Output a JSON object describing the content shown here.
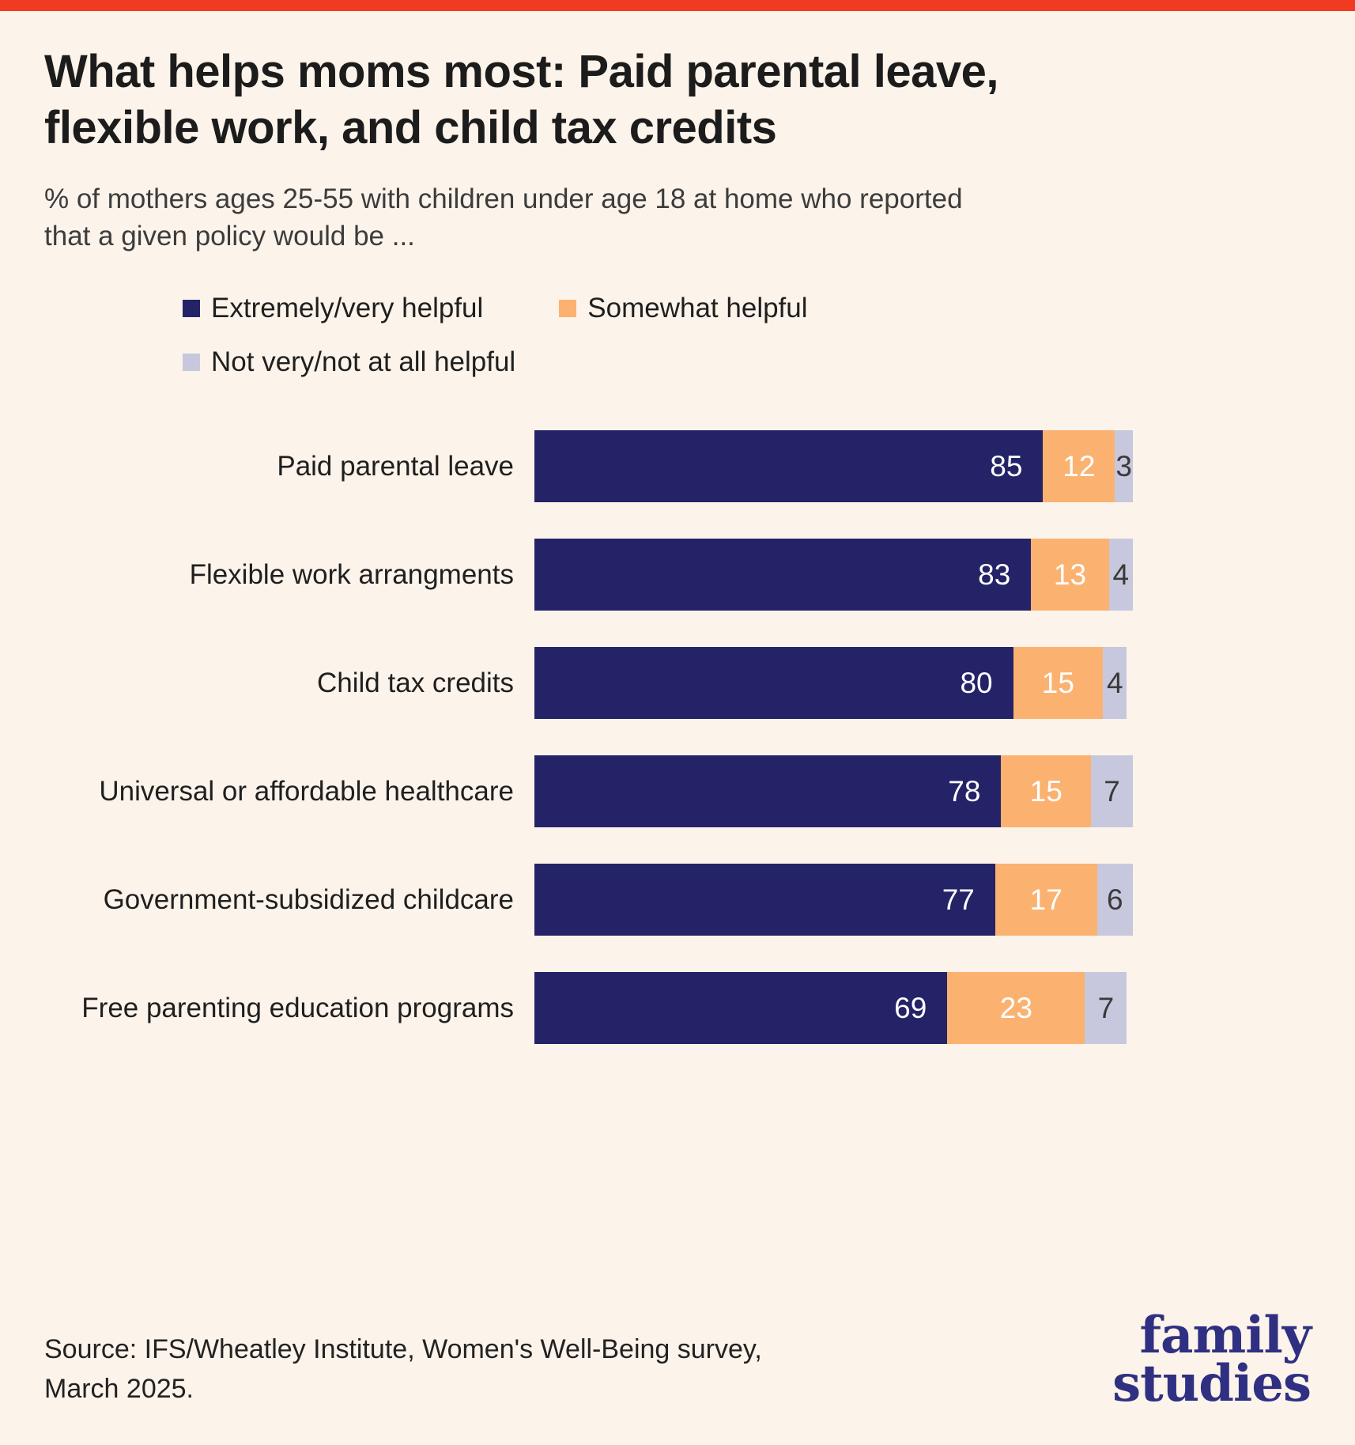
{
  "page": {
    "background_color": "#FCF3EA",
    "top_bar_color": "#F03A21"
  },
  "header": {
    "title": "What helps moms most: Paid parental leave, flexible work, and child tax credits",
    "subtitle": "% of mothers ages 25-55 with children under age 18 at home who reported that a given policy would be ..."
  },
  "legend": [
    {
      "label": "Extremely/very helpful",
      "color": "#242368"
    },
    {
      "label": "Somewhat helpful",
      "color": "#FBB271"
    },
    {
      "label": "Not very/not at all helpful",
      "color": "#C7C8DD"
    }
  ],
  "chart_data": {
    "type": "bar",
    "orientation": "horizontal",
    "stacked": true,
    "xlim": [
      0,
      100
    ],
    "grid": false,
    "legend_position": "top",
    "value_labels": true,
    "categories": [
      "Paid parental leave",
      "Flexible work arrangments",
      "Child tax credits",
      "Universal or affordable healthcare",
      "Government-subsidized childcare",
      "Free parenting education programs"
    ],
    "series": [
      {
        "name": "Extremely/very helpful",
        "color": "#242368",
        "values": [
          85,
          83,
          80,
          78,
          77,
          69
        ]
      },
      {
        "name": "Somewhat helpful",
        "color": "#FBB271",
        "values": [
          12,
          13,
          15,
          15,
          17,
          23
        ]
      },
      {
        "name": "Not very/not at all helpful",
        "color": "#C7C8DD",
        "values": [
          3,
          4,
          4,
          7,
          6,
          7
        ]
      }
    ]
  },
  "footer": {
    "source": "Source: IFS/Wheatley Institute, Women's Well-Being survey, March 2025.",
    "logo_line1": "family",
    "logo_line2": "studies",
    "logo_color": "#2F3082"
  }
}
